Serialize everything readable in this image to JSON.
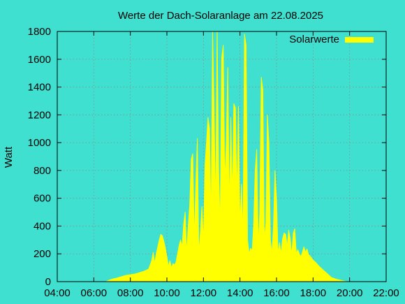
{
  "chart_data": {
    "type": "area",
    "title": "Werte der Dach-Solaranlage am 22.08.2025",
    "xlabel": "",
    "ylabel": "Watt",
    "xlim": [
      "04:00",
      "22:00"
    ],
    "ylim": [
      0,
      1800
    ],
    "grid": true,
    "legend": {
      "position": "top-right",
      "entries": [
        "Solarwerte"
      ]
    },
    "x_ticks": [
      "04:00",
      "06:00",
      "08:00",
      "10:00",
      "12:00",
      "14:00",
      "16:00",
      "18:00",
      "20:00",
      "22:00"
    ],
    "y_ticks": [
      0,
      200,
      400,
      600,
      800,
      1000,
      1200,
      1400,
      1600,
      1800
    ],
    "colors": {
      "background": "#40e0d0",
      "series": "#ffff00",
      "text": "#000000"
    },
    "series": [
      {
        "name": "Solarwerte",
        "points": [
          [
            "06:40",
            0
          ],
          [
            "06:50",
            10
          ],
          [
            "07:00",
            18
          ],
          [
            "07:15",
            25
          ],
          [
            "07:30",
            35
          ],
          [
            "07:45",
            45
          ],
          [
            "08:00",
            50
          ],
          [
            "08:15",
            55
          ],
          [
            "08:30",
            65
          ],
          [
            "08:45",
            75
          ],
          [
            "09:00",
            90
          ],
          [
            "09:10",
            150
          ],
          [
            "09:15",
            210
          ],
          [
            "09:20",
            130
          ],
          [
            "09:25",
            200
          ],
          [
            "09:30",
            250
          ],
          [
            "09:35",
            300
          ],
          [
            "09:40",
            340
          ],
          [
            "09:45",
            330
          ],
          [
            "09:50",
            290
          ],
          [
            "09:55",
            240
          ],
          [
            "10:00",
            180
          ],
          [
            "10:05",
            110
          ],
          [
            "10:10",
            150
          ],
          [
            "10:15",
            100
          ],
          [
            "10:20",
            130
          ],
          [
            "10:25",
            120
          ],
          [
            "10:30",
            140
          ],
          [
            "10:35",
            200
          ],
          [
            "10:40",
            260
          ],
          [
            "10:45",
            300
          ],
          [
            "10:50",
            250
          ],
          [
            "10:55",
            410
          ],
          [
            "11:00",
            500
          ],
          [
            "11:05",
            200
          ],
          [
            "11:10",
            400
          ],
          [
            "11:15",
            550
          ],
          [
            "11:20",
            880
          ],
          [
            "11:25",
            920
          ],
          [
            "11:30",
            300
          ],
          [
            "11:35",
            700
          ],
          [
            "11:40",
            1030
          ],
          [
            "11:45",
            200
          ],
          [
            "11:50",
            350
          ],
          [
            "11:55",
            540
          ],
          [
            "12:00",
            280
          ],
          [
            "12:05",
            830
          ],
          [
            "12:10",
            1000
          ],
          [
            "12:15",
            1180
          ],
          [
            "12:20",
            1100
          ],
          [
            "12:25",
            400
          ],
          [
            "12:30",
            1800
          ],
          [
            "12:35",
            1240
          ],
          [
            "12:40",
            500
          ],
          [
            "12:45",
            1800
          ],
          [
            "12:50",
            800
          ],
          [
            "12:55",
            380
          ],
          [
            "13:00",
            1610
          ],
          [
            "13:05",
            1700
          ],
          [
            "13:10",
            700
          ],
          [
            "13:15",
            1000
          ],
          [
            "13:20",
            1540
          ],
          [
            "13:25",
            500
          ],
          [
            "13:30",
            1180
          ],
          [
            "13:35",
            600
          ],
          [
            "13:40",
            1280
          ],
          [
            "13:45",
            1250
          ],
          [
            "13:50",
            600
          ],
          [
            "13:55",
            1260
          ],
          [
            "14:00",
            400
          ],
          [
            "14:05",
            700
          ],
          [
            "14:10",
            320
          ],
          [
            "14:15",
            1780
          ],
          [
            "14:20",
            1700
          ],
          [
            "14:25",
            300
          ],
          [
            "14:30",
            200
          ],
          [
            "14:35",
            240
          ],
          [
            "14:40",
            220
          ],
          [
            "14:45",
            420
          ],
          [
            "14:50",
            800
          ],
          [
            "14:55",
            950
          ],
          [
            "15:00",
            260
          ],
          [
            "15:05",
            500
          ],
          [
            "15:10",
            1470
          ],
          [
            "15:15",
            1380
          ],
          [
            "15:20",
            300
          ],
          [
            "15:25",
            420
          ],
          [
            "15:30",
            1200
          ],
          [
            "15:35",
            1000
          ],
          [
            "15:40",
            300
          ],
          [
            "15:45",
            200
          ],
          [
            "15:50",
            400
          ],
          [
            "15:55",
            800
          ],
          [
            "16:00",
            600
          ],
          [
            "16:05",
            200
          ],
          [
            "16:10",
            280
          ],
          [
            "16:15",
            200
          ],
          [
            "16:20",
            310
          ],
          [
            "16:25",
            350
          ],
          [
            "16:30",
            340
          ],
          [
            "16:35",
            250
          ],
          [
            "16:40",
            370
          ],
          [
            "16:45",
            310
          ],
          [
            "16:50",
            190
          ],
          [
            "16:55",
            350
          ],
          [
            "17:00",
            380
          ],
          [
            "17:05",
            200
          ],
          [
            "17:10",
            230
          ],
          [
            "17:15",
            200
          ],
          [
            "17:20",
            180
          ],
          [
            "17:25",
            210
          ],
          [
            "17:30",
            250
          ],
          [
            "17:35",
            210
          ],
          [
            "17:40",
            235
          ],
          [
            "17:45",
            195
          ],
          [
            "17:50",
            185
          ],
          [
            "17:55",
            170
          ],
          [
            "18:00",
            155
          ],
          [
            "18:10",
            135
          ],
          [
            "18:20",
            110
          ],
          [
            "18:30",
            90
          ],
          [
            "18:40",
            70
          ],
          [
            "18:50",
            50
          ],
          [
            "19:00",
            30
          ],
          [
            "19:10",
            22
          ],
          [
            "19:20",
            15
          ],
          [
            "19:30",
            10
          ],
          [
            "19:40",
            5
          ],
          [
            "19:50",
            0
          ]
        ]
      }
    ]
  }
}
